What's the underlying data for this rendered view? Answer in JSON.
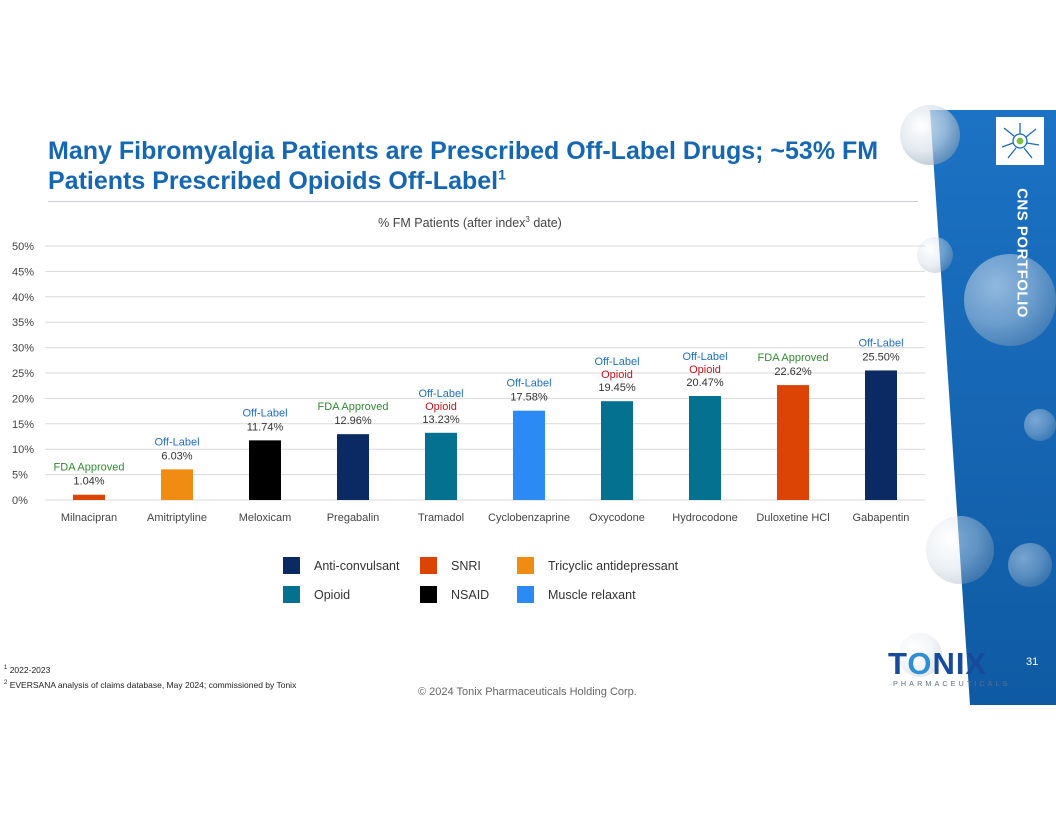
{
  "title": {
    "main": "Many Fibromyalgia Patients are Prescribed Off-Label Drugs; ~53% FM Patients Prescribed Opioids Off-Label",
    "sup": "1"
  },
  "side_tab": "CNS PORTFOLIO",
  "chart_data": {
    "type": "bar",
    "title": "% FM Patients (after index",
    "title_sup": "3",
    "title_suffix": " date)",
    "ylim": [
      0,
      50
    ],
    "yticks": [
      "0%",
      "5%",
      "10%",
      "15%",
      "20%",
      "25%",
      "30%",
      "35%",
      "40%",
      "45%",
      "50%"
    ],
    "grid": true,
    "categories": [
      "Milnacipran",
      "Amitriptyline",
      "Meloxicam",
      "Pregabalin",
      "Tramadol",
      "Cyclobenzaprine",
      "Oxycodone",
      "Hydrocodone",
      "Duloxetine HCl",
      "Gabapentin"
    ],
    "values": [
      1.04,
      6.03,
      11.74,
      12.96,
      13.23,
      17.58,
      19.45,
      20.47,
      22.62,
      25.5
    ],
    "value_labels": [
      "1.04%",
      "6.03%",
      "11.74%",
      "12.96%",
      "13.23%",
      "17.58%",
      "19.45%",
      "20.47%",
      "22.62%",
      "25.50%"
    ],
    "drug_class": [
      "SNRI",
      "Tricyclic antidepressant",
      "NSAID",
      "Anti-convulsant",
      "Opioid",
      "Muscle relaxant",
      "Opioid",
      "Opioid",
      "SNRI",
      "Anti-convulsant"
    ],
    "status": [
      "FDA Approved",
      "Off-Label",
      "Off-Label",
      "FDA Approved",
      "Off-Label",
      "Off-Label",
      "Off-Label",
      "Off-Label",
      "FDA Approved",
      "Off-Label"
    ],
    "opioid_tag": [
      "",
      "",
      "",
      "",
      "Opioid",
      "",
      "Opioid",
      "Opioid",
      "",
      ""
    ]
  },
  "legend": [
    {
      "label": "Anti-convulsant",
      "color": "#0b2a63"
    },
    {
      "label": "SNRI",
      "color": "#dc4405"
    },
    {
      "label": "Tricyclic antidepressant",
      "color": "#ef8c11"
    },
    {
      "label": "Opioid",
      "color": "#03718f"
    },
    {
      "label": "NSAID",
      "color": "#000000"
    },
    {
      "label": "Muscle relaxant",
      "color": "#2b8af3"
    }
  ],
  "colors": {
    "title": "#1667b2",
    "off_label": "#1f6fc4",
    "fda_approved": "#2e8b2e",
    "opioid_tag": "#c0141c",
    "panel": "#1768b8"
  },
  "footnotes": [
    {
      "sup": "1",
      "text": " 2022-2023"
    },
    {
      "sup": "2",
      "text": " EVERSANA analysis of claims database, May 2024; commissioned by Tonix"
    }
  ],
  "copyright": "© 2024 Tonix Pharmaceuticals Holding Corp.",
  "logo": {
    "word_left": "T",
    "word_o": "O",
    "word_right": "NIX",
    "sub": "PHARMACEUTICALS"
  },
  "page_number": "31"
}
